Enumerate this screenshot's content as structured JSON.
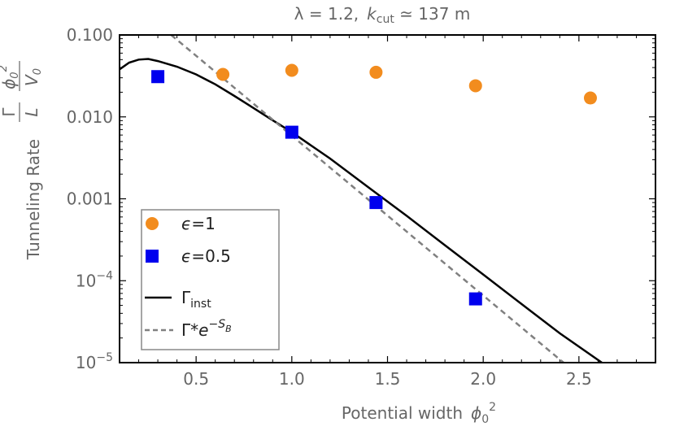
{
  "chart_data": {
    "type": "scatter",
    "title": "λ = 1.2,  k_cut ≃ 137 m",
    "title_parts": {
      "lambda": "λ = 1.2,",
      "k": "k",
      "k_sub": "cut",
      "rest": " ≃ 137 m"
    },
    "xlabel": "Potential width  ϕ₀²",
    "xlabel_parts": {
      "text": "Potential width",
      "phi": "ϕ",
      "sub": "0",
      "sup": "2"
    },
    "ylabel": "Tunneling Rate  (Γ/L)(ϕ₀²/V₀)",
    "ylabel_parts": {
      "text": "Tunneling Rate",
      "gamma": "Γ",
      "L": "L",
      "phi": "ϕ",
      "phi_sub": "0",
      "phi_sup": "2",
      "V": "V",
      "V_sub": "0"
    },
    "x_range": [
      0.1,
      2.9
    ],
    "y_range_log10": [
      -5,
      -1
    ],
    "x_ticks": [
      0.5,
      1.0,
      1.5,
      2.0,
      2.5
    ],
    "x_tick_labels": [
      "0.5",
      "1.0",
      "1.5",
      "2.0",
      "2.5"
    ],
    "y_ticks": [
      {
        "value": 0.1,
        "label": "0.100"
      },
      {
        "value": 0.01,
        "label": "0.010"
      },
      {
        "value": 0.001,
        "label": "0.001"
      },
      {
        "value": 0.0001,
        "label_base": "10",
        "label_exp": "−4"
      },
      {
        "value": 1e-05,
        "label_base": "10",
        "label_exp": "−5"
      }
    ],
    "series": [
      {
        "name": "ϵ=1",
        "legend_parts": {
          "eps": "ϵ",
          "rest": "=1"
        },
        "kind": "points",
        "marker": "circle",
        "color": "#f28c1e",
        "x": [
          0.64,
          1.0,
          1.44,
          1.96,
          2.56
        ],
        "y": [
          0.033,
          0.037,
          0.035,
          0.024,
          0.017
        ]
      },
      {
        "name": "ϵ=0.5",
        "legend_parts": {
          "eps": "ϵ",
          "rest": "=0.5"
        },
        "kind": "points",
        "marker": "square",
        "color": "#0000ee",
        "x": [
          0.3,
          1.0,
          1.44,
          1.96
        ],
        "y": [
          0.031,
          0.0065,
          0.0009,
          6e-05
        ]
      },
      {
        "name": "Γ_inst",
        "legend_parts": {
          "gamma": "Γ",
          "sub": "inst"
        },
        "kind": "line",
        "style": "solid",
        "color": "#000000",
        "x": [
          0.1,
          0.15,
          0.2,
          0.25,
          0.3,
          0.4,
          0.5,
          0.6,
          0.7,
          0.8,
          0.9,
          1.0,
          1.2,
          1.4,
          1.6,
          1.8,
          2.0,
          2.2,
          2.4,
          2.62
        ],
        "y": [
          0.038,
          0.046,
          0.05,
          0.051,
          0.048,
          0.041,
          0.033,
          0.025,
          0.018,
          0.0128,
          0.0091,
          0.0065,
          0.0031,
          0.00138,
          0.00062,
          0.000271,
          0.000119,
          5.2e-05,
          2.28e-05,
          1e-05
        ]
      },
      {
        "name": "Γ*e^{-S_B}",
        "legend_parts": {
          "gamma": "Γ*",
          "e": "e",
          "exp": "−S",
          "exp_sub": "B"
        },
        "kind": "line",
        "style": "dashed",
        "color": "#808080",
        "x": [
          0.37,
          2.42
        ],
        "y": [
          0.1,
          1e-05
        ]
      }
    ],
    "legend_position": "bottom-left",
    "grid": false
  }
}
